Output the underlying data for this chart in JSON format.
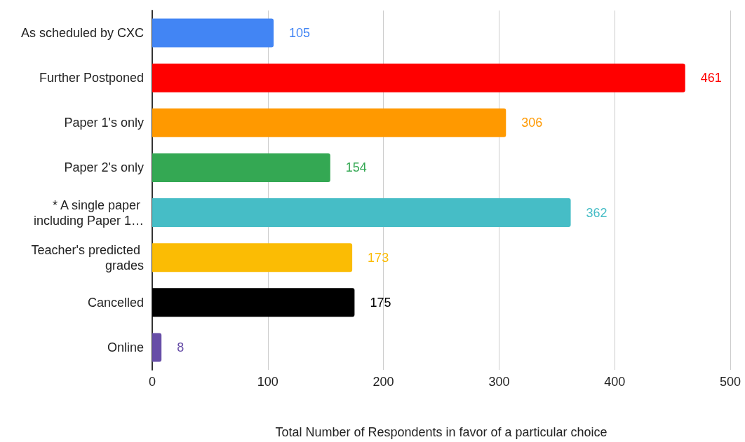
{
  "chart_data": {
    "type": "bar",
    "orientation": "horizontal",
    "xlabel": "Total Number of Respondents in favor of a particular choice",
    "categories": [
      "As scheduled by CXC",
      "Further Postponed",
      "Paper 1's only",
      "Paper 2's only",
      "* A single paper including Paper 1…",
      "Teacher's predicted grades",
      "Cancelled",
      "Online"
    ],
    "values": [
      105,
      461,
      306,
      154,
      362,
      173,
      175,
      8
    ],
    "colors": [
      "#4285f4",
      "#ff0000",
      "#ff9900",
      "#34a853",
      "#46bdc6",
      "#fbbc04",
      "#000000",
      "#674ea7"
    ],
    "xlim": [
      0,
      500
    ],
    "xticks": [
      0,
      100,
      200,
      300,
      400,
      500
    ],
    "grid": "x",
    "data_labels": true
  }
}
